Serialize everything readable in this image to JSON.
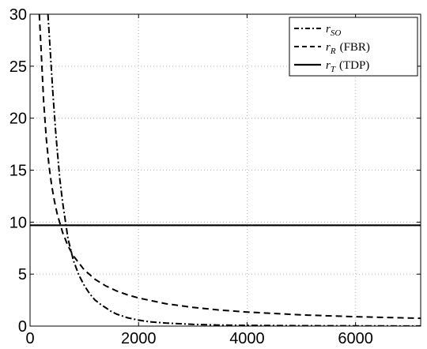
{
  "chart_data": {
    "type": "line",
    "title": "",
    "xlabel": "",
    "ylabel": "",
    "xlim": [
      0,
      7200
    ],
    "ylim": [
      0,
      30
    ],
    "grid": true,
    "legend_position": "top-right",
    "x_ticks": [
      {
        "value": 0,
        "label": "0"
      },
      {
        "value": 2000,
        "label": "2000"
      },
      {
        "value": 4000,
        "label": "4000"
      },
      {
        "value": 6000,
        "label": "6000"
      }
    ],
    "y_ticks": [
      {
        "value": 0,
        "label": "0"
      },
      {
        "value": 5,
        "label": "5"
      },
      {
        "value": 10,
        "label": "10"
      },
      {
        "value": 15,
        "label": "15"
      },
      {
        "value": 20,
        "label": "20"
      },
      {
        "value": 25,
        "label": "25"
      },
      {
        "value": 30,
        "label": "30"
      }
    ],
    "series": [
      {
        "name": "r_SO",
        "label_main": "r",
        "label_sub": "SO",
        "label_suffix": "",
        "style": "dashdot",
        "color": "#000000",
        "x": [
          330,
          380,
          420,
          470,
          500,
          550,
          600,
          700,
          800,
          900,
          1000,
          1100,
          1200,
          1300,
          1400,
          1500,
          1600,
          1800,
          2000,
          2200,
          2500,
          3000,
          3500,
          4000,
          5000,
          6000,
          7200
        ],
        "y": [
          30,
          25.8,
          22.5,
          18.9,
          17.0,
          14.1,
          11.9,
          8.4,
          6.3,
          4.9,
          3.9,
          3.1,
          2.5,
          2.1,
          1.75,
          1.4,
          1.15,
          0.8,
          0.58,
          0.42,
          0.3,
          0.17,
          0.1,
          0.07,
          0.04,
          0.02,
          0.01
        ]
      },
      {
        "name": "r_R (FBR)",
        "label_main": "r",
        "label_sub": "R",
        "label_suffix": "(FBR)",
        "style": "dashed",
        "color": "#000000",
        "x": [
          170,
          200,
          250,
          300,
          350,
          400,
          450,
          500,
          600,
          700,
          800,
          1000,
          1200,
          1400,
          1600,
          1800,
          2000,
          2500,
          3000,
          3500,
          4000,
          5000,
          6000,
          7200
        ],
        "y": [
          30,
          27.0,
          21.6,
          18.0,
          15.4,
          13.5,
          12.0,
          10.8,
          9.0,
          7.7,
          6.75,
          5.4,
          4.5,
          3.85,
          3.37,
          3.0,
          2.7,
          2.16,
          1.8,
          1.54,
          1.35,
          1.08,
          0.9,
          0.75
        ]
      },
      {
        "name": "r_T (TDP)",
        "label_main": "r",
        "label_sub": "T",
        "label_suffix": "(TDP)",
        "style": "solid",
        "color": "#000000",
        "x": [
          0,
          7200
        ],
        "y": [
          9.7,
          9.7
        ]
      }
    ]
  }
}
